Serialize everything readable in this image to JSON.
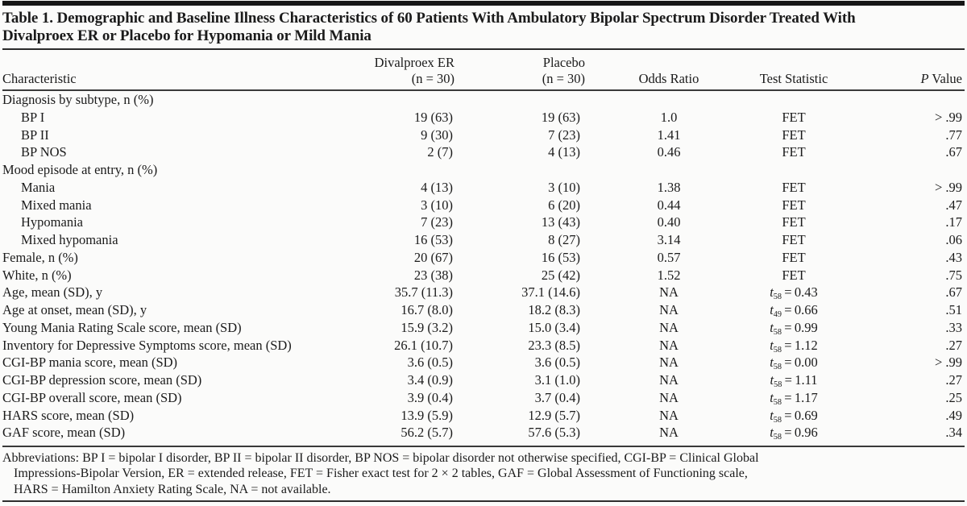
{
  "table": {
    "title_lines": [
      "Table 1. Demographic and Baseline Illness Characteristics of 60 Patients With Ambulatory Bipolar Spectrum Disorder Treated With",
      "Divalproex ER or Placebo for Hypomania or Mild Mania"
    ],
    "columns": {
      "characteristic": "Characteristic",
      "group1_name": "Divalproex ER",
      "group1_n": "(n = 30)",
      "group2_name": "Placebo",
      "group2_n": "(n = 30)",
      "odds_ratio": "Odds Ratio",
      "test_statistic": "Test Statistic",
      "p_italic": "P",
      "p_rest": " Value"
    },
    "rows": [
      {
        "label": "Diagnosis by subtype, n (%)",
        "type": "group"
      },
      {
        "label": "BP I",
        "type": "sub",
        "dival": "19 (63)",
        "placebo": "19 (63)",
        "odds": "1.0",
        "test": "FET",
        "p": "> .99"
      },
      {
        "label": "BP II",
        "type": "sub",
        "dival": "9 (30)",
        "placebo": "7 (23)",
        "odds": "1.41",
        "test": "FET",
        "p": ".77"
      },
      {
        "label": "BP NOS",
        "type": "sub",
        "dival": "2 (7)",
        "placebo": "4 (13)",
        "odds": "0.46",
        "test": "FET",
        "p": ".67"
      },
      {
        "label": "Mood episode at entry, n (%)",
        "type": "group"
      },
      {
        "label": "Mania",
        "type": "sub",
        "dival": "4 (13)",
        "placebo": "3 (10)",
        "odds": "1.38",
        "test": "FET",
        "p": "> .99"
      },
      {
        "label": "Mixed mania",
        "type": "sub",
        "dival": "3 (10)",
        "placebo": "6 (20)",
        "odds": "0.44",
        "test": "FET",
        "p": ".47"
      },
      {
        "label": "Hypomania",
        "type": "sub",
        "dival": "7 (23)",
        "placebo": "13 (43)",
        "odds": "0.40",
        "test": "FET",
        "p": ".17"
      },
      {
        "label": "Mixed hypomania",
        "type": "sub",
        "dival": "16 (53)",
        "placebo": "8 (27)",
        "odds": "3.14",
        "test": "FET",
        "p": ".06"
      },
      {
        "label": "Female, n (%)",
        "type": "plain",
        "dival": "20 (67)",
        "placebo": "16 (53)",
        "odds": "0.57",
        "test": "FET",
        "p": ".43"
      },
      {
        "label": "White, n (%)",
        "type": "plain",
        "dival": "23 (38)",
        "placebo": "25 (42)",
        "odds": "1.52",
        "test": "FET",
        "p": ".75"
      },
      {
        "label": "Age, mean (SD), y",
        "type": "plain",
        "dival": "35.7 (11.3)",
        "placebo": "37.1 (14.6)",
        "odds": "NA",
        "test": {
          "sub": "58",
          "value": "0.43"
        },
        "p": ".67"
      },
      {
        "label": "Age at onset, mean (SD), y",
        "type": "plain",
        "dival": "16.7 (8.0)",
        "placebo": "18.2 (8.3)",
        "odds": "NA",
        "test": {
          "sub": "49",
          "value": "0.66"
        },
        "p": ".51"
      },
      {
        "label": "Young Mania Rating Scale score, mean (SD)",
        "type": "plain",
        "dival": "15.9 (3.2)",
        "placebo": "15.0 (3.4)",
        "odds": "NA",
        "test": {
          "sub": "58",
          "value": "0.99"
        },
        "p": ".33"
      },
      {
        "label": "Inventory for Depressive Symptoms score, mean (SD)",
        "type": "plain",
        "dival": "26.1 (10.7)",
        "placebo": "23.3 (8.5)",
        "odds": "NA",
        "test": {
          "sub": "58",
          "value": "1.12"
        },
        "p": ".27"
      },
      {
        "label": "CGI-BP mania score, mean (SD)",
        "type": "plain",
        "dival": "3.6 (0.5)",
        "placebo": "3.6 (0.5)",
        "odds": "NA",
        "test": {
          "sub": "58",
          "value": "0.00"
        },
        "p": "> .99"
      },
      {
        "label": "CGI-BP depression score, mean (SD)",
        "type": "plain",
        "dival": "3.4 (0.9)",
        "placebo": "3.1 (1.0)",
        "odds": "NA",
        "test": {
          "sub": "58",
          "value": "1.11"
        },
        "p": ".27"
      },
      {
        "label": "CGI-BP overall score, mean (SD)",
        "type": "plain",
        "dival": "3.9 (0.4)",
        "placebo": "3.7 (0.4)",
        "odds": "NA",
        "test": {
          "sub": "58",
          "value": "1.17"
        },
        "p": ".25"
      },
      {
        "label": "HARS score, mean (SD)",
        "type": "plain",
        "dival": "13.9 (5.9)",
        "placebo": "12.9 (5.7)",
        "odds": "NA",
        "test": {
          "sub": "58",
          "value": "0.69"
        },
        "p": ".49"
      },
      {
        "label": "GAF score, mean (SD)",
        "type": "plain",
        "dival": "56.2 (5.7)",
        "placebo": "57.6 (5.3)",
        "odds": "NA",
        "test": {
          "sub": "58",
          "value": "0.96"
        },
        "p": ".34"
      }
    ],
    "test_var": "t",
    "footnote_lines": [
      "Abbreviations: BP I = bipolar I disorder, BP II = bipolar II disorder, BP NOS = bipolar disorder not otherwise specified, CGI-BP = Clinical Global",
      "Impressions-Bipolar Version, ER = extended release, FET = Fisher exact test for 2 × 2 tables, GAF = Global Assessment of Functioning scale,",
      "HARS = Hamilton Anxiety Rating Scale, NA = not available."
    ],
    "colors": {
      "text": "#1b1b1b",
      "rule": "#2a2a2a",
      "background": "#fbfbfa"
    }
  }
}
